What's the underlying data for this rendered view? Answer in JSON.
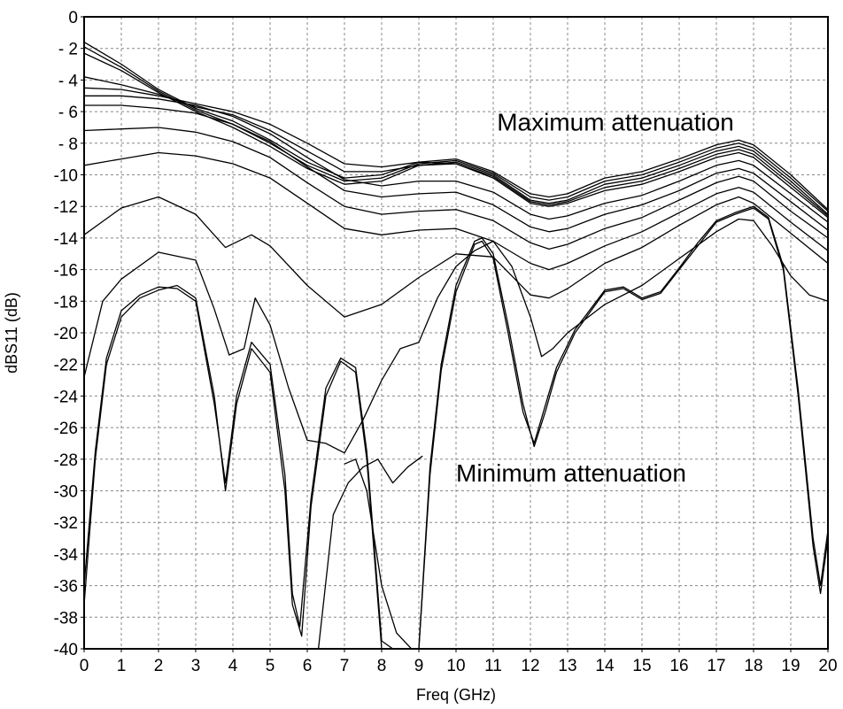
{
  "chart_data": {
    "type": "line",
    "title": "",
    "xlabel": "Freq (GHz)",
    "ylabel": "dBS11 (dB)",
    "xlim": [
      0,
      20
    ],
    "ylim": [
      -40,
      0
    ],
    "xticks": [
      0,
      1,
      2,
      3,
      4,
      5,
      6,
      7,
      8,
      9,
      10,
      11,
      12,
      13,
      14,
      15,
      16,
      17,
      18,
      19,
      20
    ],
    "yticks": [
      0,
      -2,
      -4,
      -6,
      -8,
      -10,
      -12,
      -14,
      -16,
      -18,
      -20,
      -22,
      -24,
      -26,
      -28,
      -30,
      -32,
      -34,
      -36,
      -38,
      -40
    ],
    "ytick_labels": [
      "0",
      "- 2",
      "- 4",
      "- 6",
      "- 8",
      "-10",
      "-12",
      "-14",
      "-16",
      "-18",
      "-20",
      "-22",
      "-24",
      "-26",
      "-28",
      "-30",
      "-32",
      "-34",
      "-36",
      "-38",
      "-40"
    ],
    "grid": true,
    "grid_style": "dashed",
    "line_color": "#000000",
    "annotations": [
      {
        "text": "Maximum attenuation",
        "x": 11.1,
        "y": -7.2
      },
      {
        "text": "Minimum attenuation",
        "x": 10.0,
        "y": -29.4
      }
    ],
    "series": [
      {
        "x": [
          0,
          1,
          2,
          3,
          4,
          5,
          6,
          7,
          8,
          9,
          10,
          11,
          12,
          12.5,
          13,
          14,
          15,
          16,
          17,
          17.6,
          18,
          19,
          20
        ],
        "y": [
          -1.6,
          -3.0,
          -4.6,
          -5.8,
          -6.6,
          -7.8,
          -9.2,
          -10.2,
          -10.0,
          -9.2,
          -9.0,
          -9.8,
          -11.2,
          -11.4,
          -11.2,
          -10.2,
          -9.8,
          -9.0,
          -8.1,
          -7.8,
          -8.1,
          -10.0,
          -12.2
        ]
      },
      {
        "x": [
          0,
          1,
          2,
          3,
          4,
          5,
          6,
          7,
          8,
          9,
          10,
          11,
          12,
          12.5,
          13,
          14,
          15,
          16,
          17,
          17.6,
          18,
          19,
          20
        ],
        "y": [
          -1.9,
          -3.2,
          -4.7,
          -5.9,
          -6.8,
          -8.0,
          -9.4,
          -10.4,
          -10.2,
          -9.3,
          -9.1,
          -9.9,
          -11.4,
          -11.6,
          -11.4,
          -10.4,
          -10.0,
          -9.2,
          -8.3,
          -8.0,
          -8.3,
          -10.2,
          -12.3
        ]
      },
      {
        "x": [
          0,
          1,
          2,
          3,
          4,
          5,
          6,
          7,
          8,
          9,
          10,
          11,
          12,
          12.5,
          13,
          14,
          15,
          16,
          17,
          17.6,
          18,
          19,
          20
        ],
        "y": [
          -2.3,
          -3.4,
          -4.8,
          -6.0,
          -7.0,
          -8.2,
          -9.6,
          -10.6,
          -10.4,
          -9.4,
          -9.2,
          -10.0,
          -11.6,
          -11.8,
          -11.6,
          -10.6,
          -10.2,
          -9.4,
          -8.5,
          -8.2,
          -8.5,
          -10.4,
          -12.5
        ]
      },
      {
        "x": [
          0,
          1,
          2,
          3,
          4,
          5,
          6,
          7,
          8,
          9,
          10,
          11,
          12,
          12.5,
          13,
          14,
          15,
          16,
          17,
          17.6,
          18,
          19,
          20
        ],
        "y": [
          -3.8,
          -4.3,
          -4.9,
          -5.7,
          -6.2,
          -7.2,
          -8.5,
          -9.8,
          -9.8,
          -9.4,
          -9.3,
          -10.1,
          -11.7,
          -11.9,
          -11.7,
          -10.8,
          -10.4,
          -9.6,
          -8.7,
          -8.4,
          -8.7,
          -10.6,
          -12.6
        ]
      },
      {
        "x": [
          0,
          1,
          2,
          3,
          4,
          5,
          6,
          7,
          8,
          9,
          10,
          11,
          12,
          12.5,
          13,
          14,
          15,
          16,
          17,
          17.6,
          18,
          19,
          20
        ],
        "y": [
          -4.5,
          -4.6,
          -5.0,
          -5.5,
          -6.0,
          -6.8,
          -8.0,
          -9.3,
          -9.5,
          -9.2,
          -9.3,
          -10.2,
          -11.8,
          -12.0,
          -11.8,
          -11.0,
          -10.6,
          -9.8,
          -8.9,
          -8.6,
          -8.9,
          -10.8,
          -12.7
        ]
      },
      {
        "x": [
          0,
          1,
          2,
          3,
          4,
          5,
          6,
          7,
          8,
          9,
          10,
          11,
          12,
          12.5,
          13,
          14,
          15,
          16,
          17,
          17.6,
          18,
          19,
          20
        ],
        "y": [
          -5.0,
          -5.0,
          -5.2,
          -5.6,
          -6.3,
          -7.4,
          -8.9,
          -10.3,
          -10.7,
          -10.4,
          -10.4,
          -11.1,
          -12.5,
          -12.8,
          -12.6,
          -11.8,
          -11.3,
          -10.4,
          -9.4,
          -9.1,
          -9.4,
          -11.2,
          -13.0
        ]
      },
      {
        "x": [
          0,
          1,
          2,
          3,
          4,
          5,
          6,
          7,
          8,
          9,
          10,
          11,
          12,
          12.5,
          13,
          14,
          15,
          16,
          17,
          17.6,
          18,
          19,
          20
        ],
        "y": [
          -5.6,
          -5.6,
          -5.8,
          -6.1,
          -6.8,
          -7.9,
          -9.5,
          -11.0,
          -11.4,
          -11.2,
          -11.1,
          -11.9,
          -13.3,
          -13.6,
          -13.4,
          -12.5,
          -11.9,
          -11.0,
          -9.9,
          -9.6,
          -9.9,
          -11.7,
          -13.5
        ]
      },
      {
        "x": [
          0,
          1,
          2,
          3,
          4,
          5,
          6,
          7,
          8,
          9,
          10,
          11,
          12,
          12.5,
          13,
          14,
          15,
          16,
          17,
          17.6,
          18,
          19,
          20
        ],
        "y": [
          -7.2,
          -7.1,
          -7.0,
          -7.3,
          -7.9,
          -8.9,
          -10.5,
          -12.0,
          -12.5,
          -12.3,
          -12.2,
          -12.9,
          -14.3,
          -14.7,
          -14.4,
          -13.4,
          -12.7,
          -11.6,
          -10.5,
          -10.1,
          -10.4,
          -12.3,
          -14.0
        ]
      },
      {
        "x": [
          0,
          1,
          2,
          3,
          4,
          5,
          6,
          7,
          8,
          9,
          10,
          11,
          12,
          12.5,
          13,
          14,
          15,
          16,
          17,
          17.6,
          18,
          19,
          20
        ],
        "y": [
          -9.4,
          -9.0,
          -8.6,
          -8.8,
          -9.3,
          -10.2,
          -11.8,
          -13.4,
          -13.8,
          -13.5,
          -13.4,
          -14.2,
          -15.6,
          -16.0,
          -15.6,
          -14.5,
          -13.6,
          -12.4,
          -11.2,
          -10.8,
          -11.1,
          -13.0,
          -14.8
        ]
      },
      {
        "x": [
          0,
          1,
          2,
          3,
          3.8,
          4.5,
          5,
          6,
          7,
          8,
          9,
          10,
          11,
          12,
          12.5,
          13,
          14,
          15,
          16,
          17,
          17.6,
          18,
          19,
          20
        ],
        "y": [
          -13.8,
          -12.1,
          -11.4,
          -12.5,
          -14.6,
          -13.8,
          -14.5,
          -17.0,
          -19.0,
          -18.2,
          -16.5,
          -15.0,
          -15.2,
          -17.6,
          -17.8,
          -17.2,
          -15.6,
          -14.6,
          -13.2,
          -11.9,
          -11.4,
          -11.8,
          -13.7,
          -15.6
        ]
      },
      {
        "x": [
          0,
          0.5,
          1,
          2,
          3,
          3.5,
          3.9,
          4.3,
          4.6,
          5,
          5.5,
          6,
          6.5,
          7,
          7.5,
          8,
          8.5,
          9,
          9.5,
          10,
          10.5,
          11,
          11.5,
          12,
          12.3,
          12.6,
          13,
          14,
          15,
          16,
          17,
          17.6,
          18,
          18.5,
          19,
          19.5,
          20
        ],
        "y": [
          -22.8,
          -18.0,
          -16.6,
          -14.9,
          -15.4,
          -18.5,
          -21.4,
          -21.0,
          -17.8,
          -19.5,
          -23.5,
          -26.8,
          -27.0,
          -27.6,
          -25.5,
          -23.0,
          -21.0,
          -20.6,
          -17.8,
          -15.8,
          -14.8,
          -14.2,
          -15.8,
          -19.0,
          -21.5,
          -21.0,
          -20.0,
          -18.2,
          -17.0,
          -15.3,
          -13.6,
          -12.8,
          -12.9,
          -14.5,
          -16.4,
          -17.6,
          -18.0
        ]
      },
      {
        "x": [
          0,
          0.3,
          0.6,
          1,
          1.5,
          2,
          2.5,
          3,
          3.5,
          3.8,
          4.1,
          4.5,
          5,
          5.4,
          5.6,
          5.85,
          6.1,
          6.5,
          6.9,
          7.3,
          7.6,
          8,
          8.3,
          8.6,
          9,
          9.3,
          9.6,
          10,
          10.5,
          10.7,
          11,
          11.4,
          11.8,
          12.1,
          12.4,
          12.7,
          13.2,
          14,
          14.5,
          15,
          15.5,
          16,
          16.5,
          17,
          17.5,
          18,
          18.4,
          18.8,
          19.2,
          19.6,
          19.8,
          20
        ],
        "y": [
          -37.2,
          -28.0,
          -22.0,
          -19.0,
          -17.8,
          -17.3,
          -17.0,
          -17.8,
          -24.0,
          -30.0,
          -24.5,
          -21.0,
          -22.5,
          -30.0,
          -37.2,
          -39.2,
          -31.0,
          -24.0,
          -21.8,
          -22.5,
          -28.0,
          -40.0,
          -40.0,
          -40.0,
          -40.0,
          -28.5,
          -22.0,
          -17.0,
          -14.2,
          -14.0,
          -15.0,
          -19.5,
          -24.5,
          -27.2,
          -25.0,
          -22.5,
          -20.0,
          -17.4,
          -17.2,
          -17.9,
          -17.5,
          -16.0,
          -14.5,
          -13.0,
          -12.5,
          -12.1,
          -12.8,
          -16.0,
          -24.0,
          -33.5,
          -36.5,
          -33.0
        ]
      },
      {
        "x": [
          0,
          0.3,
          0.6,
          1,
          1.5,
          2,
          2.5,
          3,
          3.5,
          3.8,
          4.1,
          4.5,
          5,
          5.4,
          5.6,
          5.8,
          6.1,
          6.5,
          6.9,
          7.3,
          7.6,
          8,
          8.3,
          8.6,
          9,
          9.3,
          9.6,
          10,
          10.5,
          10.7,
          11,
          11.4,
          11.8,
          12.1,
          12.4,
          12.7,
          13.2,
          14,
          14.5,
          15,
          15.5,
          16,
          16.5,
          17,
          17.5,
          18,
          18.4,
          18.8,
          19.2,
          19.6,
          19.8,
          20
        ],
        "y": [
          -36.0,
          -27.5,
          -21.6,
          -18.6,
          -17.6,
          -17.1,
          -17.2,
          -18.0,
          -24.5,
          -29.5,
          -24.0,
          -20.6,
          -22.0,
          -29.0,
          -36.5,
          -38.6,
          -30.5,
          -23.5,
          -21.6,
          -22.2,
          -27.5,
          -39.5,
          -40.0,
          -40.0,
          -40.0,
          -29.0,
          -22.4,
          -17.4,
          -14.4,
          -14.2,
          -15.3,
          -20.0,
          -25.0,
          -27.0,
          -24.6,
          -22.2,
          -19.8,
          -17.3,
          -17.1,
          -17.8,
          -17.4,
          -15.9,
          -14.3,
          -12.9,
          -12.4,
          -12.0,
          -12.7,
          -15.8,
          -23.6,
          -33.0,
          -36.0,
          -32.5
        ]
      },
      {
        "x": [
          7,
          7.3,
          7.6,
          8,
          8.4,
          8.8,
          9.2,
          9.5
        ],
        "y": [
          -28.3,
          -28.0,
          -30.0,
          -36.0,
          -39.0,
          -40.0,
          -40.0,
          -40.0
        ]
      },
      {
        "x": [
          6.3,
          6.7,
          7.1,
          7.5,
          7.9,
          8.3,
          8.7,
          9.1
        ],
        "y": [
          -40.0,
          -31.5,
          -29.5,
          -28.5,
          -28.0,
          -29.5,
          -28.5,
          -27.8
        ]
      }
    ]
  }
}
